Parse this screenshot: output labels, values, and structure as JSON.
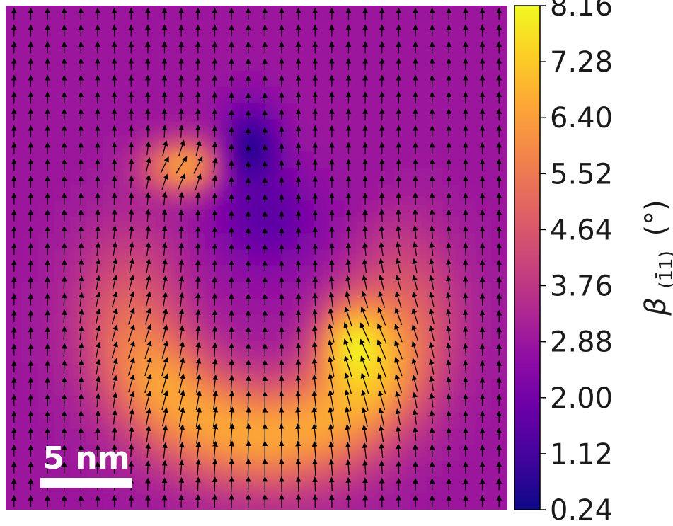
{
  "chart_data": {
    "type": "heatmap",
    "title": "",
    "colormap": "plasma",
    "colorbar": {
      "label_symbol": "β",
      "label_subscript": "(1̄1)",
      "label_unit": "(°)",
      "range": [
        0.24,
        8.16
      ],
      "ticks": [
        "8.16",
        "7.28",
        "6.40",
        "5.52",
        "4.64",
        "3.76",
        "2.88",
        "2.00",
        "1.12",
        "0.24"
      ]
    },
    "field": {
      "description_ignored": "",
      "grid": [
        31,
        31
      ],
      "x_range": [
        0,
        1
      ],
      "y_range": [
        0,
        1
      ],
      "background_value": 2.9,
      "features": [
        {
          "kind": "ring",
          "cx": 0.52,
          "cy": 0.58,
          "r": 0.27,
          "width": 0.11,
          "peak": 6.6
        },
        {
          "kind": "blob",
          "cx": 0.7,
          "cy": 0.68,
          "rx": 0.07,
          "ry": 0.09,
          "peak": 8.1
        },
        {
          "kind": "blob",
          "cx": 0.36,
          "cy": 0.32,
          "rx": 0.08,
          "ry": 0.05,
          "peak": 6.8
        },
        {
          "kind": "hole",
          "cx": 0.49,
          "cy": 0.29,
          "rx": 0.055,
          "ry": 0.09,
          "peak": 0.3
        },
        {
          "kind": "hole",
          "cx": 0.52,
          "cy": 0.42,
          "rx": 0.1,
          "ry": 0.1,
          "peak": 1.5
        }
      ]
    },
    "vectors": {
      "rows": 30,
      "cols": 30,
      "vortex_center": [
        0.52,
        0.44
      ]
    },
    "scalebar": {
      "label": "5 nm",
      "length_nm": 5
    }
  }
}
